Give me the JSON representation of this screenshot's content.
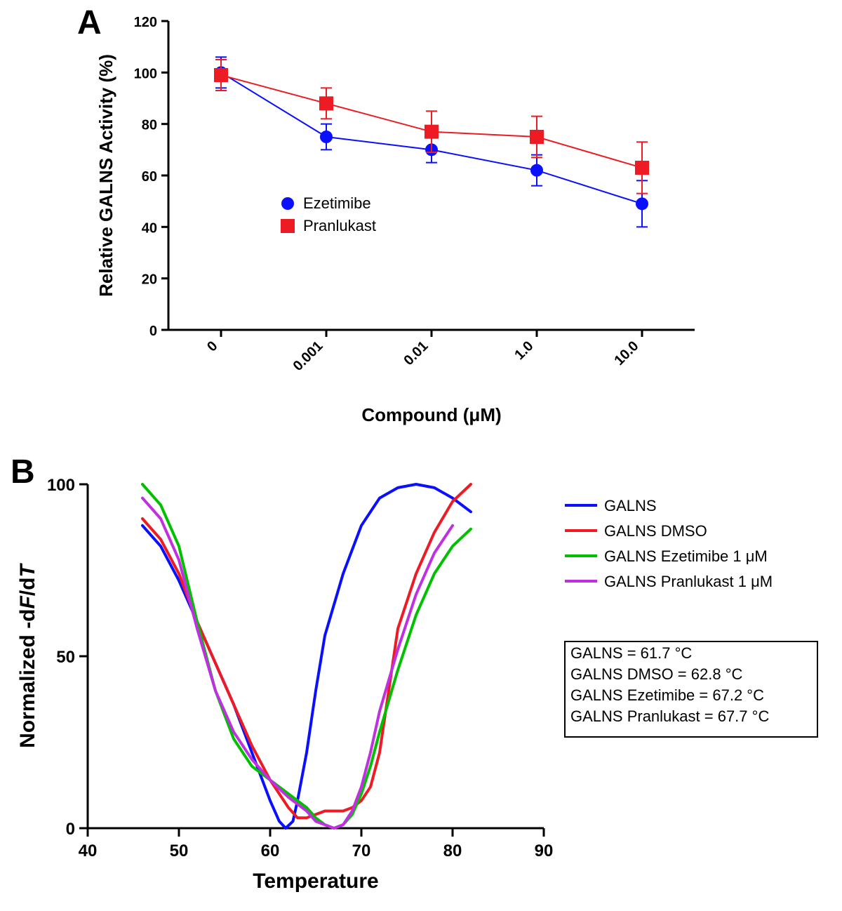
{
  "panelA": {
    "label": "A",
    "type": "scatter-line-errorbar",
    "ylabel": "Relative GALNS Activity (%)",
    "xlabel": "Compound (μM)",
    "ylim": [
      0,
      120
    ],
    "ytick_step": 20,
    "yticks": [
      0,
      20,
      40,
      60,
      80,
      100,
      120
    ],
    "categories": [
      "0",
      "0.001",
      "0.01",
      "1.0",
      "10.0"
    ],
    "series": [
      {
        "name": "Ezetimibe",
        "color": "#0a10ff",
        "marker": "circle",
        "marker_size": 9,
        "line_width": 2,
        "values": [
          100,
          75,
          70,
          62,
          49
        ],
        "err": [
          6,
          5,
          5,
          6,
          9
        ]
      },
      {
        "name": "Pranlukast",
        "color": "#ed1c24",
        "marker": "square",
        "marker_size": 10,
        "line_width": 2,
        "values": [
          99,
          88,
          77,
          75,
          63
        ],
        "err": [
          6,
          6,
          8,
          8,
          10
        ]
      }
    ],
    "axis_color": "#000000",
    "axis_width": 3,
    "tick_font_size": 20,
    "label_font_size": 26,
    "legend_font_size": 22
  },
  "panelB": {
    "label": "B",
    "type": "line",
    "ylabel": "Normalized -dF/dT",
    "xlabel": "Temperature",
    "ylim": [
      0,
      100
    ],
    "yticks": [
      0,
      50,
      100
    ],
    "xlim": [
      40,
      90
    ],
    "xticks": [
      40,
      50,
      60,
      70,
      80,
      90
    ],
    "axis_color": "#000000",
    "axis_width": 3,
    "tick_font_size": 24,
    "label_font_size": 30,
    "legend_font_size": 22,
    "series": [
      {
        "name": "GALNS",
        "color": "#0a10ff",
        "line_width": 4,
        "points": [
          [
            46,
            88
          ],
          [
            48,
            82
          ],
          [
            50,
            72
          ],
          [
            52,
            60
          ],
          [
            54,
            48
          ],
          [
            56,
            36
          ],
          [
            58,
            22
          ],
          [
            60,
            8
          ],
          [
            61,
            2
          ],
          [
            61.7,
            0
          ],
          [
            62.5,
            2
          ],
          [
            63,
            8
          ],
          [
            64,
            22
          ],
          [
            65,
            40
          ],
          [
            66,
            56
          ],
          [
            68,
            74
          ],
          [
            70,
            88
          ],
          [
            72,
            96
          ],
          [
            74,
            99
          ],
          [
            76,
            100
          ],
          [
            78,
            99
          ],
          [
            80,
            96
          ],
          [
            82,
            92
          ]
        ]
      },
      {
        "name": "GALNS DMSO",
        "color": "#ed1c24",
        "line_width": 4,
        "points": [
          [
            46,
            90
          ],
          [
            48,
            84
          ],
          [
            50,
            74
          ],
          [
            52,
            60
          ],
          [
            54,
            48
          ],
          [
            56,
            36
          ],
          [
            58,
            24
          ],
          [
            60,
            14
          ],
          [
            62,
            6
          ],
          [
            63,
            3
          ],
          [
            64,
            3
          ],
          [
            65,
            4
          ],
          [
            66,
            5
          ],
          [
            67,
            5
          ],
          [
            68,
            5
          ],
          [
            69,
            6
          ],
          [
            70,
            8
          ],
          [
            71,
            12
          ],
          [
            72,
            22
          ],
          [
            73,
            40
          ],
          [
            74,
            58
          ],
          [
            76,
            74
          ],
          [
            78,
            86
          ],
          [
            80,
            95
          ],
          [
            82,
            100
          ]
        ]
      },
      {
        "name": "GALNS Ezetimibe 1 μM",
        "color": "#00c000",
        "line_width": 4,
        "points": [
          [
            46,
            100
          ],
          [
            48,
            94
          ],
          [
            50,
            82
          ],
          [
            52,
            60
          ],
          [
            54,
            40
          ],
          [
            56,
            26
          ],
          [
            58,
            18
          ],
          [
            60,
            14
          ],
          [
            62,
            10
          ],
          [
            64,
            6
          ],
          [
            65,
            3
          ],
          [
            66,
            1
          ],
          [
            67,
            0
          ],
          [
            68,
            1
          ],
          [
            69,
            4
          ],
          [
            70,
            10
          ],
          [
            71,
            18
          ],
          [
            72,
            28
          ],
          [
            74,
            46
          ],
          [
            76,
            62
          ],
          [
            78,
            74
          ],
          [
            80,
            82
          ],
          [
            82,
            87
          ]
        ]
      },
      {
        "name": "GALNS Pranlukast 1 μM",
        "color": "#c030e0",
        "line_width": 4,
        "points": [
          [
            46,
            96
          ],
          [
            48,
            90
          ],
          [
            50,
            78
          ],
          [
            52,
            58
          ],
          [
            54,
            40
          ],
          [
            56,
            28
          ],
          [
            58,
            20
          ],
          [
            60,
            14
          ],
          [
            62,
            9
          ],
          [
            64,
            5
          ],
          [
            65,
            2
          ],
          [
            66,
            1
          ],
          [
            67,
            0
          ],
          [
            68,
            1
          ],
          [
            69,
            5
          ],
          [
            70,
            12
          ],
          [
            71,
            22
          ],
          [
            72,
            34
          ],
          [
            74,
            52
          ],
          [
            76,
            68
          ],
          [
            78,
            80
          ],
          [
            80,
            88
          ]
        ]
      }
    ],
    "annotation_box": {
      "lines": [
        "GALNS = 61.7 °C",
        "GALNS DMSO = 62.8 °C",
        "GALNS Ezetimibe = 67.2 °C",
        "GALNS Pranlukast = 67.7 °C"
      ],
      "border_color": "#000000",
      "font_size": 22
    }
  }
}
